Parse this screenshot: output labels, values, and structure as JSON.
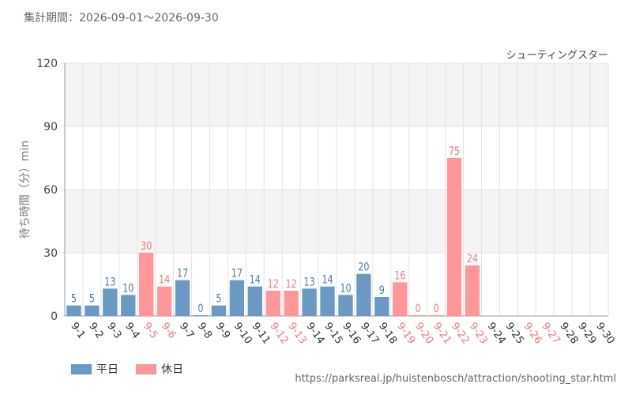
{
  "header": {
    "period_label": "集計期間：2026-09-01～2026-09-30"
  },
  "source_url": "https://parksreal.jp/huistenbosch/attraction/shooting_star.html",
  "colors": {
    "weekday": "#6a9ac4",
    "holiday": "#ff9799",
    "weekday_text": "#4a7ba7",
    "holiday_text": "#ef7a7c",
    "band": "#f4f4f4",
    "grid": "#e4e4e4"
  },
  "chart_data": {
    "type": "bar",
    "title": "シューティングスター",
    "ylabel": "待ち時間（分）min",
    "ylim": [
      0,
      120
    ],
    "yticks": [
      0,
      30,
      60,
      90,
      120
    ],
    "grid": true,
    "legend_position": "bottom-left",
    "legend": [
      {
        "key": "weekday",
        "label": "平日"
      },
      {
        "key": "holiday",
        "label": "休日"
      }
    ],
    "categories": [
      "9-1",
      "9-2",
      "9-3",
      "9-4",
      "9-5",
      "9-6",
      "9-7",
      "9-8",
      "9-9",
      "9-10",
      "9-11",
      "9-12",
      "9-13",
      "9-14",
      "9-15",
      "9-16",
      "9-17",
      "9-18",
      "9-19",
      "9-20",
      "9-21",
      "9-22",
      "9-23",
      "9-24",
      "9-25",
      "9-26",
      "9-27",
      "9-28",
      "9-29",
      "9-30"
    ],
    "values": [
      5,
      5,
      13,
      10,
      30,
      14,
      17,
      0,
      5,
      17,
      14,
      12,
      12,
      13,
      14,
      10,
      20,
      9,
      16,
      0,
      0,
      75,
      24,
      null,
      null,
      null,
      null,
      null,
      null,
      null
    ],
    "day_type": [
      "weekday",
      "weekday",
      "weekday",
      "weekday",
      "holiday",
      "holiday",
      "weekday",
      "weekday",
      "weekday",
      "weekday",
      "weekday",
      "holiday",
      "holiday",
      "weekday",
      "weekday",
      "weekday",
      "weekday",
      "weekday",
      "holiday",
      "holiday",
      "holiday",
      "holiday",
      "holiday",
      "weekday",
      "weekday",
      "holiday",
      "holiday",
      "weekday",
      "weekday",
      "weekday"
    ]
  }
}
